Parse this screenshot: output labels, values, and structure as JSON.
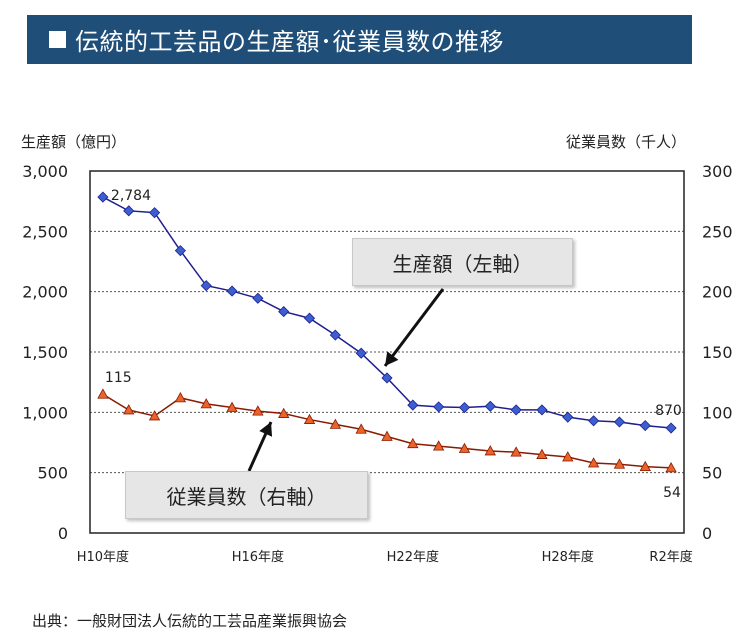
{
  "title": "伝統的工芸品の生産額･従業員数の推移",
  "source": "出典：一般財団法人伝統的工芸品産業振興協会",
  "colors": {
    "title_bg": "#1f4e79",
    "production_line": "#1f1f8f",
    "production_marker": "#3b5fd0",
    "employees_line": "#8b1a00",
    "employees_marker": "#e8642a"
  },
  "chart_data": {
    "type": "line",
    "x_tick_labels": [
      "H10年度",
      "H16年度",
      "H22年度",
      "H28年度",
      "R2年度"
    ],
    "x": [
      "H10年度",
      "H11年度",
      "H12年度",
      "H13年度",
      "H14年度",
      "H15年度",
      "H16年度",
      "H17年度",
      "H18年度",
      "H19年度",
      "H20年度",
      "H21年度",
      "H22年度",
      "H23年度",
      "H24年度",
      "H25年度",
      "H26年度",
      "H27年度",
      "H28年度",
      "H29年度",
      "H30年度",
      "R1年度",
      "R2年度"
    ],
    "y_left": {
      "label": "生産額（億円）",
      "ylim": [
        0,
        3000
      ],
      "ticks": [
        "0",
        "500",
        "1,000",
        "1,500",
        "2,000",
        "2,500",
        "3,000"
      ]
    },
    "y_right": {
      "label": "従業員数（千人）",
      "ylim": [
        0,
        300
      ],
      "ticks": [
        "0",
        "50",
        "100",
        "150",
        "200",
        "250",
        "300"
      ]
    },
    "grid": true,
    "series": [
      {
        "name": "生産額（左軸）",
        "axis": "left",
        "marker": "diamond",
        "values": [
          2784,
          2670,
          2655,
          2340,
          2050,
          2005,
          1945,
          1835,
          1780,
          1640,
          1490,
          1285,
          1060,
          1045,
          1040,
          1050,
          1020,
          1020,
          960,
          930,
          920,
          890,
          870
        ],
        "data_labels": [
          {
            "index": 0,
            "text": "2,784"
          },
          {
            "index": 22,
            "text": "870"
          }
        ]
      },
      {
        "name": "従業員数（右軸）",
        "axis": "right",
        "marker": "triangle",
        "values": [
          115,
          102,
          97,
          112,
          107,
          104,
          101,
          99,
          94,
          90,
          86,
          80,
          74,
          72,
          70,
          68,
          67,
          65,
          63,
          58,
          57,
          55,
          54
        ],
        "data_labels": [
          {
            "index": 0,
            "text": "115"
          },
          {
            "index": 22,
            "text": "54"
          }
        ]
      }
    ]
  }
}
